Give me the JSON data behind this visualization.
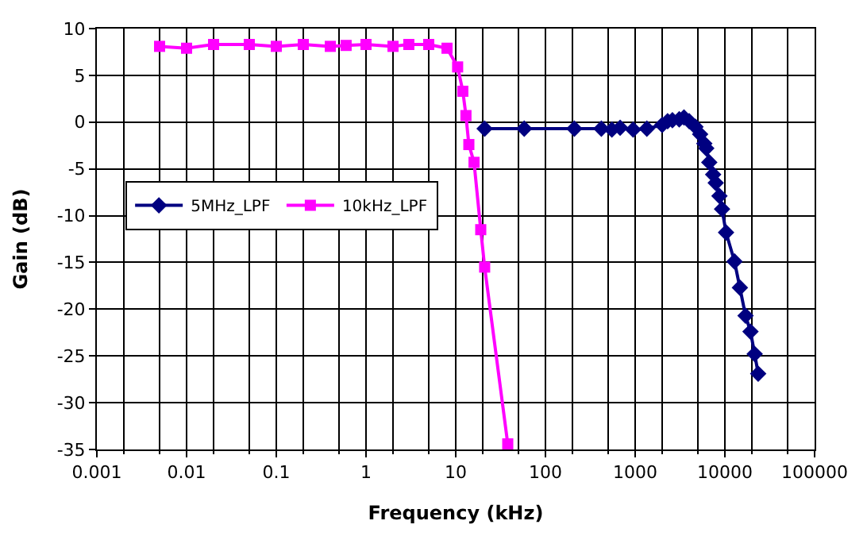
{
  "chart_data": {
    "type": "line",
    "xlabel": "Frequency (kHz)",
    "ylabel": "Gain (dB)",
    "log": "x",
    "grid": true,
    "legend": "left",
    "xlim": [
      0.001,
      100000
    ],
    "xticks": [
      0.001,
      0.01,
      0.1,
      1,
      10,
      100,
      1000,
      10000,
      100000
    ],
    "ylim": [
      -35,
      10
    ],
    "yticks": [
      -35,
      -30,
      -25,
      -20,
      -15,
      -10,
      -5,
      0,
      5,
      10
    ],
    "series": [
      {
        "name": "5MHz_LPF",
        "color": "#000080",
        "marker": "diamond",
        "x": [
          21,
          58,
          210,
          420,
          550,
          680,
          950,
          1350,
          2000,
          2300,
          2600,
          3100,
          3500,
          4000,
          4700,
          5300,
          5900,
          6200,
          6700,
          7400,
          7900,
          8700,
          9300,
          10300,
          12800,
          14700,
          17000,
          19300,
          21500,
          23500
        ],
        "values": [
          -0.7,
          -0.7,
          -0.7,
          -0.7,
          -0.8,
          -0.6,
          -0.8,
          -0.7,
          -0.3,
          0.1,
          0.2,
          0.3,
          0.5,
          0.1,
          -0.5,
          -1.3,
          -2.3,
          -2.8,
          -4.3,
          -5.6,
          -6.5,
          -7.9,
          -9.3,
          -11.8,
          -14.9,
          -17.7,
          -20.7,
          -22.4,
          -24.8,
          -26.9
        ]
      },
      {
        "name": "10kHz_LPF",
        "color": "#ff00ff",
        "marker": "square",
        "x": [
          0.005,
          0.01,
          0.02,
          0.05,
          0.1,
          0.2,
          0.4,
          0.6,
          1,
          2,
          3,
          5,
          8,
          10.5,
          12,
          13,
          14,
          16,
          19,
          21,
          38
        ],
        "values": [
          8.1,
          7.9,
          8.3,
          8.3,
          8.1,
          8.3,
          8.1,
          8.2,
          8.3,
          8.1,
          8.3,
          8.3,
          7.9,
          5.9,
          3.3,
          0.7,
          -2.4,
          -4.3,
          -11.5,
          -15.5,
          -34.4
        ]
      }
    ]
  }
}
